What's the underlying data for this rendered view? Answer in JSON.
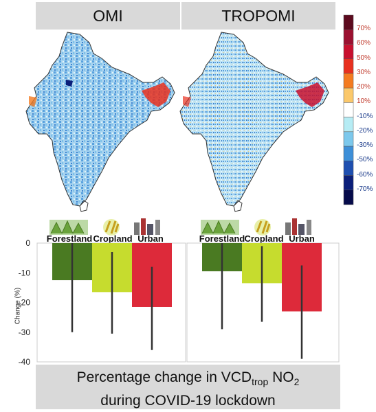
{
  "panels": {
    "left_title": "OMI",
    "right_title": "TROPOMI"
  },
  "colorbar": {
    "labels": [
      "70%",
      "60%",
      "50%",
      "30%",
      "20%",
      "10%",
      "-10%",
      "-20%",
      "-30%",
      "-50%",
      "-60%",
      "-70%"
    ],
    "colors": [
      "#5c0a1e",
      "#9b1030",
      "#c8102e",
      "#e8301f",
      "#f47b20",
      "#fbc86b",
      "#ffffff",
      "#b6ecf4",
      "#7cc8ec",
      "#3d8fd8",
      "#1e4fb0",
      "#0b1f7a",
      "#060b4a"
    ]
  },
  "categories": {
    "forestland": "Forestland",
    "cropland": "Cropland",
    "urban": "Urban"
  },
  "category_colors": {
    "forestland": "#4a7a22",
    "cropland": "#c6dc2e",
    "urban": "#dd2a3a"
  },
  "chart_data": {
    "type": "bar",
    "ylabel": "Change (%)",
    "ylim": [
      -40,
      0
    ],
    "yticks": [
      0,
      -10,
      -20,
      -30,
      -40
    ],
    "categories": [
      "Forestland",
      "Cropland",
      "Urban"
    ],
    "panels": [
      {
        "name": "OMI",
        "values": [
          -12.5,
          -16.5,
          -21.5
        ],
        "error_low": [
          -30,
          -30.5,
          -36
        ],
        "error_high": [
          0,
          -3,
          -8
        ]
      },
      {
        "name": "TROPOMI",
        "values": [
          -9.5,
          -13.5,
          -23
        ],
        "error_low": [
          -29,
          -26.5,
          -39
        ],
        "error_high": [
          0,
          -1,
          -7.5
        ]
      }
    ]
  },
  "footer": {
    "line1_pre": "Percentage change in VCD",
    "line1_sub": "trop",
    "line1_mid": " NO",
    "line1_sub2": "2",
    "line2": "during COVID-19 lockdown"
  }
}
